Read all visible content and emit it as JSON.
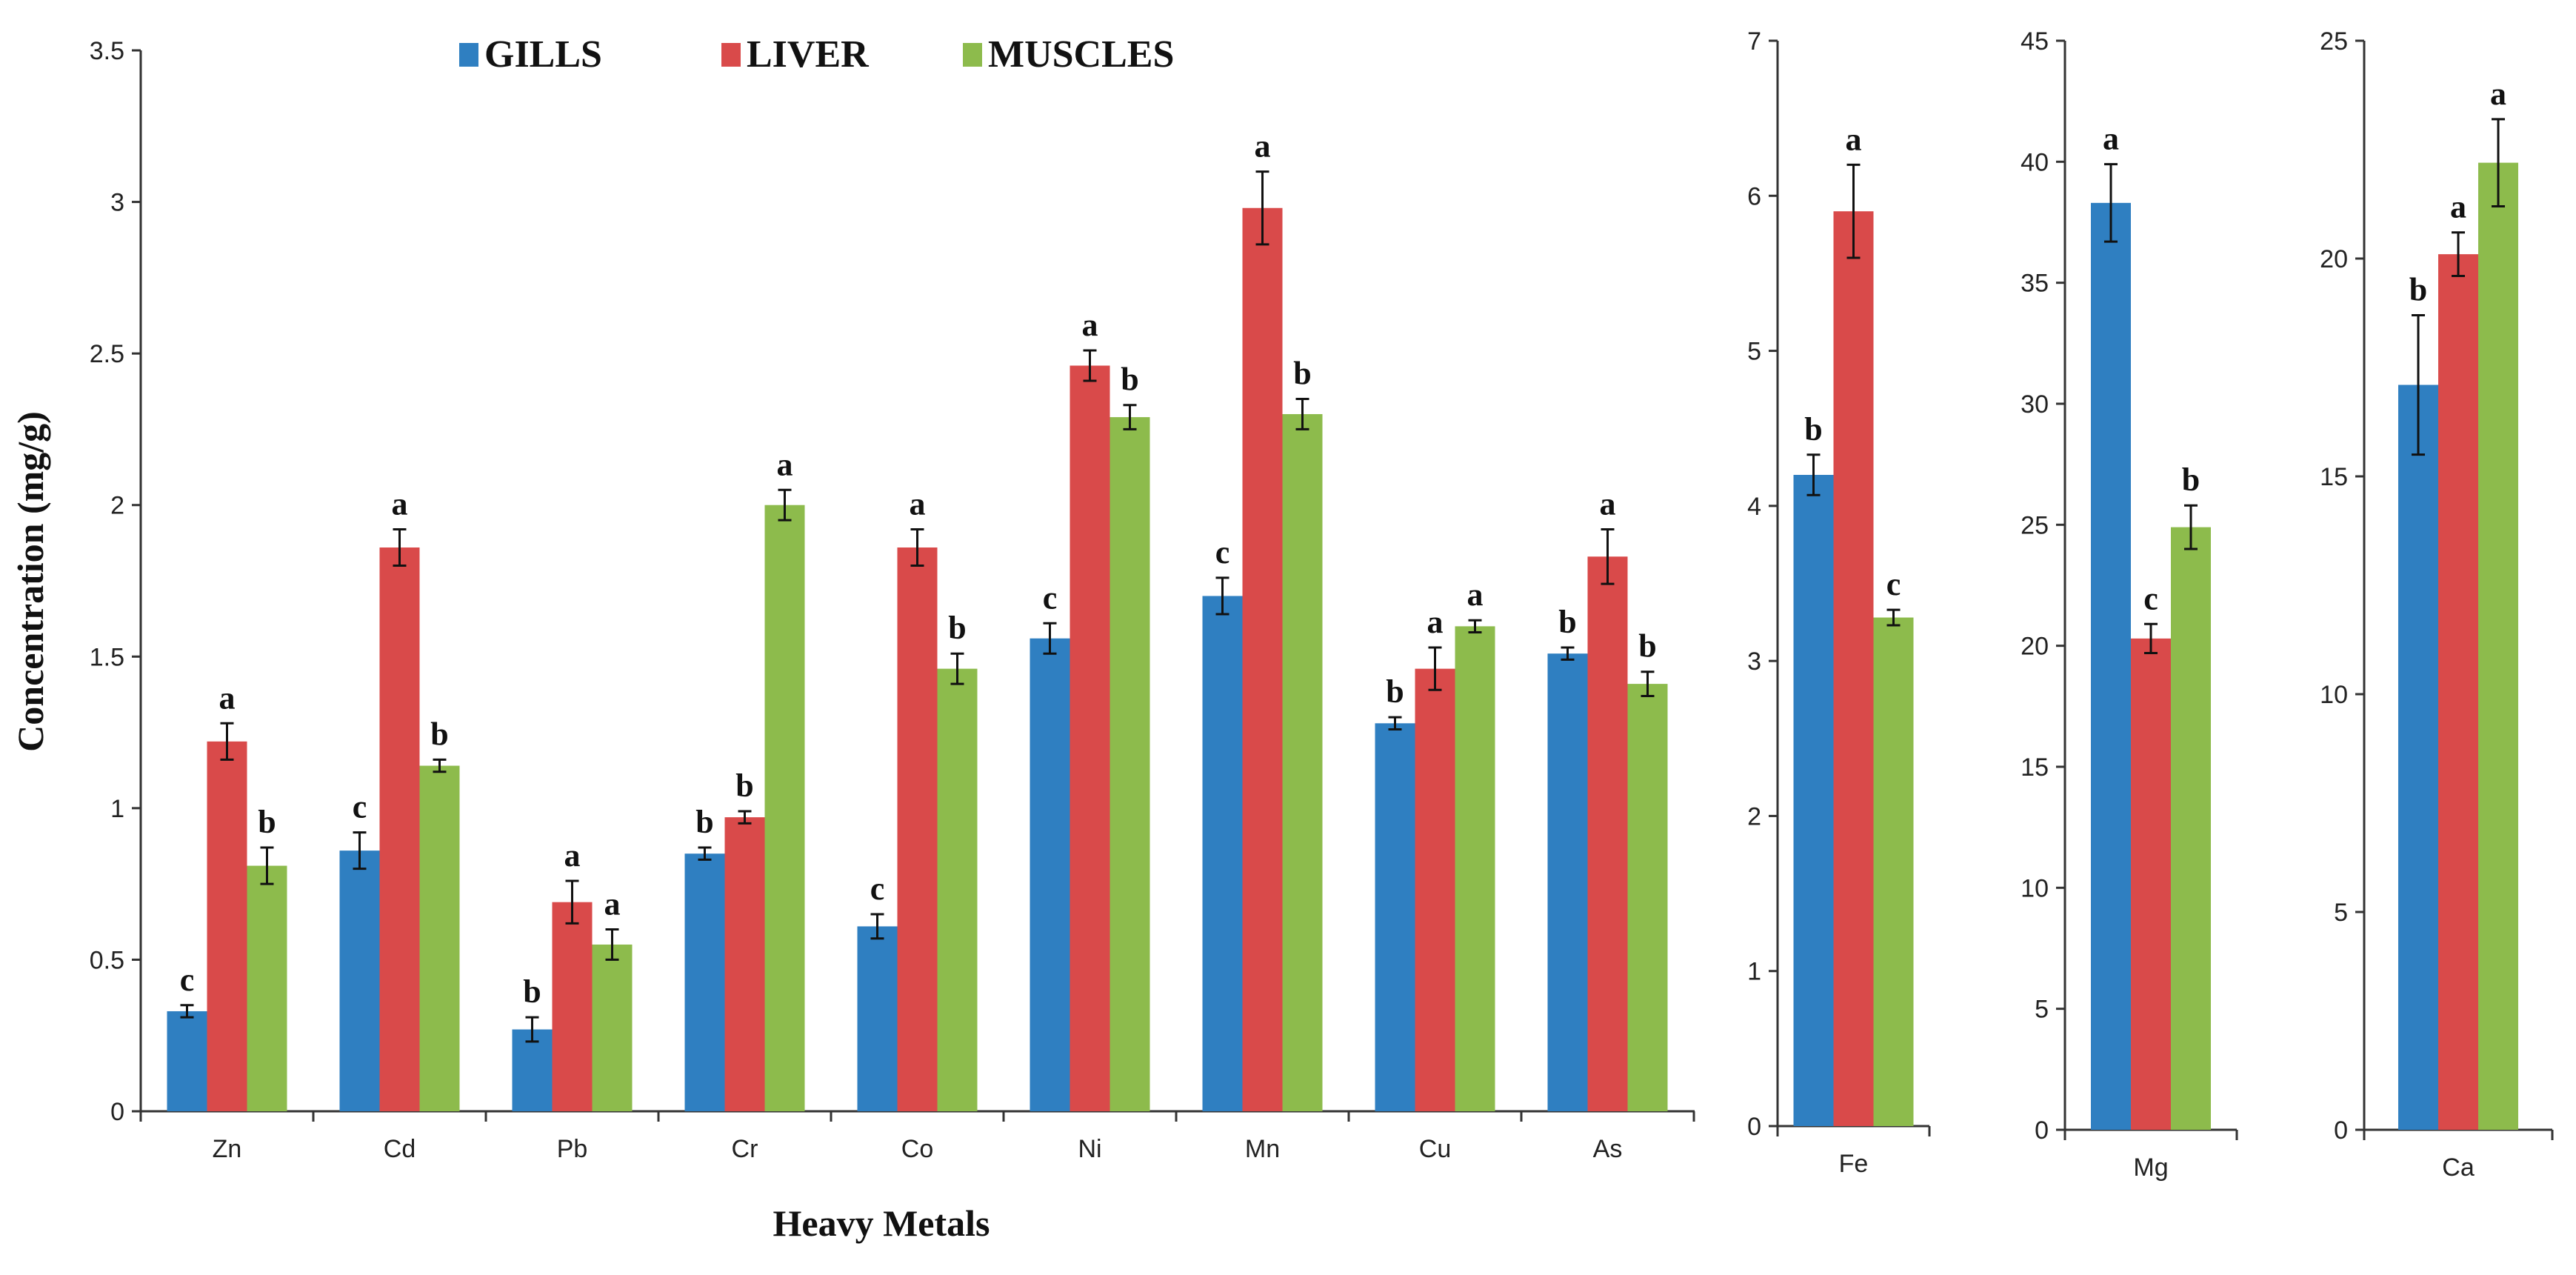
{
  "chart_data": {
    "type": "bar",
    "legend": [
      "GILLS",
      "LIVER",
      "MUSCLES"
    ],
    "colors": {
      "GILLS": "#2f7fc1",
      "LIVER": "#d94a4a",
      "MUSCLES": "#8dbb4c"
    },
    "ylabel": "Concentration   (mg/g)",
    "xlabel": "Heavy Metals",
    "panels": [
      {
        "name": "main",
        "ylim": [
          0,
          3.5
        ],
        "yticks": [
          "0",
          "0.5",
          "1",
          "1.5",
          "2",
          "2.5",
          "3",
          "3.5"
        ],
        "categories": [
          "Zn",
          "Cd",
          "Pb",
          "Cr",
          "Co",
          "Ni",
          "Mn",
          "Cu",
          "As"
        ],
        "series": [
          {
            "name": "GILLS",
            "values": [
              0.33,
              0.86,
              0.27,
              0.85,
              0.61,
              1.56,
              1.7,
              1.28,
              1.51
            ],
            "errors": [
              0.02,
              0.06,
              0.04,
              0.02,
              0.04,
              0.05,
              0.06,
              0.02,
              0.02
            ],
            "letters": [
              "c",
              "c",
              "b",
              "b",
              "c",
              "c",
              "c",
              "b",
              "b"
            ]
          },
          {
            "name": "LIVER",
            "values": [
              1.22,
              1.86,
              0.69,
              0.97,
              1.86,
              2.46,
              2.98,
              1.46,
              1.83
            ],
            "errors": [
              0.06,
              0.06,
              0.07,
              0.02,
              0.06,
              0.05,
              0.12,
              0.07,
              0.09
            ],
            "letters": [
              "a",
              "a",
              "a",
              "b",
              "a",
              "a",
              "a",
              "a",
              "a"
            ]
          },
          {
            "name": "MUSCLES",
            "values": [
              0.81,
              1.14,
              0.55,
              2.0,
              1.46,
              2.29,
              2.3,
              1.6,
              1.41
            ],
            "errors": [
              0.06,
              0.02,
              0.05,
              0.05,
              0.05,
              0.04,
              0.05,
              0.02,
              0.04
            ],
            "letters": [
              "b",
              "b",
              "a",
              "a",
              "b",
              "b",
              "b",
              "a",
              "b"
            ]
          }
        ]
      },
      {
        "name": "Fe",
        "ylim": [
          0,
          7
        ],
        "yticks": [
          "0",
          "1",
          "2",
          "3",
          "4",
          "5",
          "6",
          "7"
        ],
        "categories": [
          "Fe"
        ],
        "series": [
          {
            "name": "GILLS",
            "values": [
              4.2
            ],
            "errors": [
              0.13
            ],
            "letters": [
              "b"
            ]
          },
          {
            "name": "LIVER",
            "values": [
              5.9
            ],
            "errors": [
              0.3
            ],
            "letters": [
              "a"
            ]
          },
          {
            "name": "MUSCLES",
            "values": [
              3.28
            ],
            "errors": [
              0.05
            ],
            "letters": [
              "c"
            ]
          }
        ]
      },
      {
        "name": "Mg",
        "ylim": [
          0,
          45
        ],
        "yticks": [
          "0",
          "5",
          "10",
          "15",
          "20",
          "25",
          "30",
          "35",
          "40",
          "45"
        ],
        "categories": [
          "Mg"
        ],
        "series": [
          {
            "name": "GILLS",
            "values": [
              38.3
            ],
            "errors": [
              1.6
            ],
            "letters": [
              "a"
            ]
          },
          {
            "name": "LIVER",
            "values": [
              20.3
            ],
            "errors": [
              0.6
            ],
            "letters": [
              "c"
            ]
          },
          {
            "name": "MUSCLES",
            "values": [
              24.9
            ],
            "errors": [
              0.9
            ],
            "letters": [
              "b"
            ]
          }
        ]
      },
      {
        "name": "Ca",
        "ylim": [
          0,
          25
        ],
        "yticks": [
          "0",
          "5",
          "10",
          "15",
          "20",
          "25"
        ],
        "categories": [
          "Ca"
        ],
        "series": [
          {
            "name": "GILLS",
            "values": [
              17.1
            ],
            "errors": [
              1.6
            ],
            "letters": [
              "b"
            ]
          },
          {
            "name": "LIVER",
            "values": [
              20.1
            ],
            "errors": [
              0.5
            ],
            "letters": [
              "a"
            ]
          },
          {
            "name": "MUSCLES",
            "values": [
              22.2
            ],
            "errors": [
              1.0
            ],
            "letters": [
              "a"
            ]
          }
        ]
      }
    ]
  }
}
